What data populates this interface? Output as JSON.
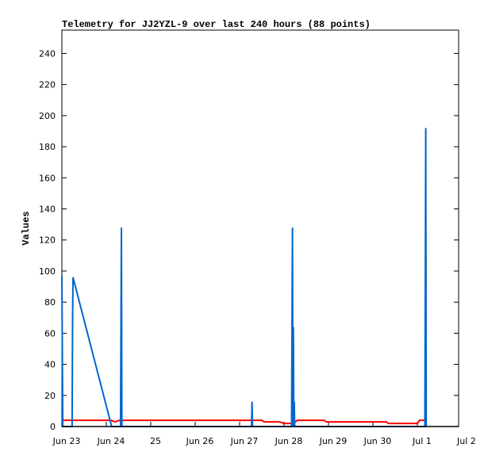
{
  "chart_data": {
    "type": "line",
    "title": "Telemetry for JJ2YZL-9 over last 240 hours (88 points)",
    "y_label": "Values",
    "xlim": [
      0,
      8.93
    ],
    "xticks": [
      {
        "value": 0,
        "label": "Jun 23"
      },
      {
        "value": 1,
        "label": "Jun 24"
      },
      {
        "value": 2,
        "label": "25"
      },
      {
        "value": 3,
        "label": "Jun 26"
      },
      {
        "value": 4,
        "label": "Jun 27"
      },
      {
        "value": 5,
        "label": "Jun 28"
      },
      {
        "value": 6,
        "label": "Jun 29"
      },
      {
        "value": 7,
        "label": "Jun 30"
      },
      {
        "value": 8,
        "label": "Jul 1"
      },
      {
        "value": 9,
        "label": "Jul 2"
      }
    ],
    "ylim": [
      0,
      255
    ],
    "yticks": [
      0,
      20,
      40,
      60,
      80,
      100,
      120,
      140,
      160,
      180,
      200,
      220,
      240
    ],
    "series": [
      {
        "color": "#ff0000",
        "x": [
          0,
          1.1,
          1.2,
          1.3,
          4.5,
          4.55,
          4.9,
          5.0,
          5.2,
          5.3,
          5.9,
          5.95,
          7.3,
          7.35,
          8.0,
          8.05,
          8.2
        ],
        "values": [
          4,
          4,
          3,
          4,
          4,
          3,
          3,
          2,
          2,
          4,
          4,
          3,
          3,
          2,
          2,
          4,
          4
        ]
      },
      {
        "color": "#0066cc",
        "x": [
          0,
          0.01,
          0.02,
          0.23,
          0.24,
          0.25,
          1.12,
          1.32,
          1.33,
          1.34,
          1.35,
          4.27,
          4.28,
          4.29,
          5.17,
          5.18,
          5.19,
          5.2,
          5.21,
          5.22,
          5.23,
          5.24,
          8.17,
          8.18,
          8.19,
          8.2
        ],
        "values": [
          97,
          48,
          0,
          0,
          64,
          96,
          0,
          0,
          64,
          128,
          0,
          0,
          16,
          0,
          0,
          64,
          128,
          0,
          64,
          0,
          16,
          0,
          0,
          96,
          192,
          0
        ]
      }
    ]
  }
}
